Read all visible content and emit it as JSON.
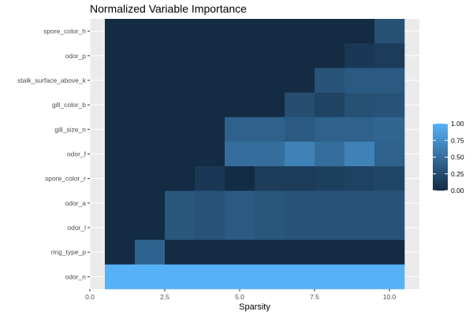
{
  "chart_data": {
    "type": "heatmap",
    "title": "Normalized Variable Importance",
    "xlabel": "Sparsity",
    "ylabel": "",
    "xlim": [
      0,
      11
    ],
    "x_ticks": [
      0.0,
      2.5,
      5.0,
      7.5,
      10.0
    ],
    "x_tick_labels": [
      "0.0",
      "2.5",
      "5.0",
      "7.5",
      "10.0"
    ],
    "x": [
      1,
      2,
      3,
      4,
      5,
      6,
      7,
      8,
      9,
      10
    ],
    "y_categories": [
      "spore_color_h",
      "odor_p",
      "stalk_surface_above_k",
      "gill_color_b",
      "gill_size_n",
      "odor_f",
      "spore_color_r",
      "odor_a",
      "odor_l",
      "ring_type_p",
      "odor_n"
    ],
    "values": [
      [
        0,
        0,
        0,
        0,
        0,
        0,
        0,
        0,
        0,
        0.28
      ],
      [
        0,
        0,
        0,
        0,
        0,
        0,
        0,
        0,
        0.1,
        0.13
      ],
      [
        0,
        0,
        0,
        0,
        0,
        0,
        0,
        0.3,
        0.35,
        0.35
      ],
      [
        0,
        0,
        0,
        0,
        0,
        0,
        0.25,
        0.18,
        0.28,
        0.3
      ],
      [
        0,
        0,
        0,
        0,
        0.4,
        0.4,
        0.35,
        0.4,
        0.4,
        0.43
      ],
      [
        0,
        0,
        0,
        0,
        0.5,
        0.5,
        0.65,
        0.5,
        0.65,
        0.4
      ],
      [
        0,
        0,
        0,
        0.1,
        0,
        0.13,
        0.13,
        0.15,
        0.17,
        0.2
      ],
      [
        0,
        0,
        0.33,
        0.3,
        0.35,
        0.32,
        0.3,
        0.3,
        0.3,
        0.3
      ],
      [
        0,
        0,
        0.33,
        0.3,
        0.35,
        0.32,
        0.3,
        0.3,
        0.3,
        0.3
      ],
      [
        0,
        0.42,
        0,
        0,
        0,
        0,
        0,
        0,
        0,
        0
      ],
      [
        1.0,
        1.0,
        1.0,
        1.0,
        1.0,
        1.0,
        1.0,
        1.0,
        1.0,
        1.0
      ]
    ],
    "color_low": "#132B43",
    "color_high": "#56B1F7",
    "panel_background": "#EBEBEB",
    "grid_color": "#FFFFFF",
    "grid": true,
    "legend": {
      "placement": "right",
      "ticks": [
        0,
        0.25,
        0.5,
        0.75,
        1.0
      ],
      "tick_labels": [
        "0.00",
        "0.25",
        "0.50",
        "0.75",
        "1.00"
      ],
      "range": [
        0,
        1
      ]
    }
  }
}
